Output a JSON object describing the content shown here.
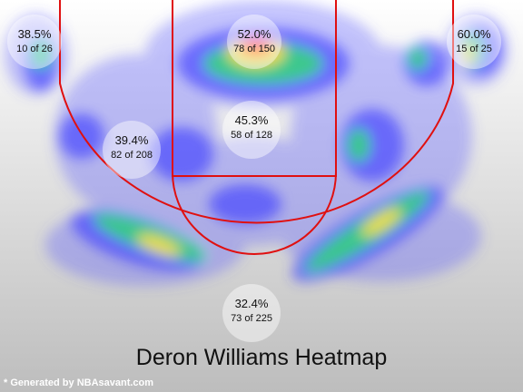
{
  "chart_data": {
    "type": "heatmap",
    "title": "Deron Williams Heatmap",
    "zones": [
      {
        "id": "left-corner",
        "pct": "38.5%",
        "made_of": "10 of 26"
      },
      {
        "id": "paint-top",
        "pct": "52.0%",
        "made_of": "78 of 150"
      },
      {
        "id": "right-corner",
        "pct": "60.0%",
        "made_of": "15 of 25"
      },
      {
        "id": "left-wing-mid",
        "pct": "39.4%",
        "made_of": "82 of 208"
      },
      {
        "id": "free-throw-area",
        "pct": "45.3%",
        "made_of": "58 of 128"
      },
      {
        "id": "top-of-key-three",
        "pct": "32.4%",
        "made_of": "73 of 225"
      }
    ],
    "colors": {
      "court_lines": "#e01010",
      "low": "#5a5aff",
      "mid": "#36d87a",
      "high": "#ff4400"
    }
  },
  "footer": {
    "credit": "* Generated by NBAsavant.com"
  }
}
